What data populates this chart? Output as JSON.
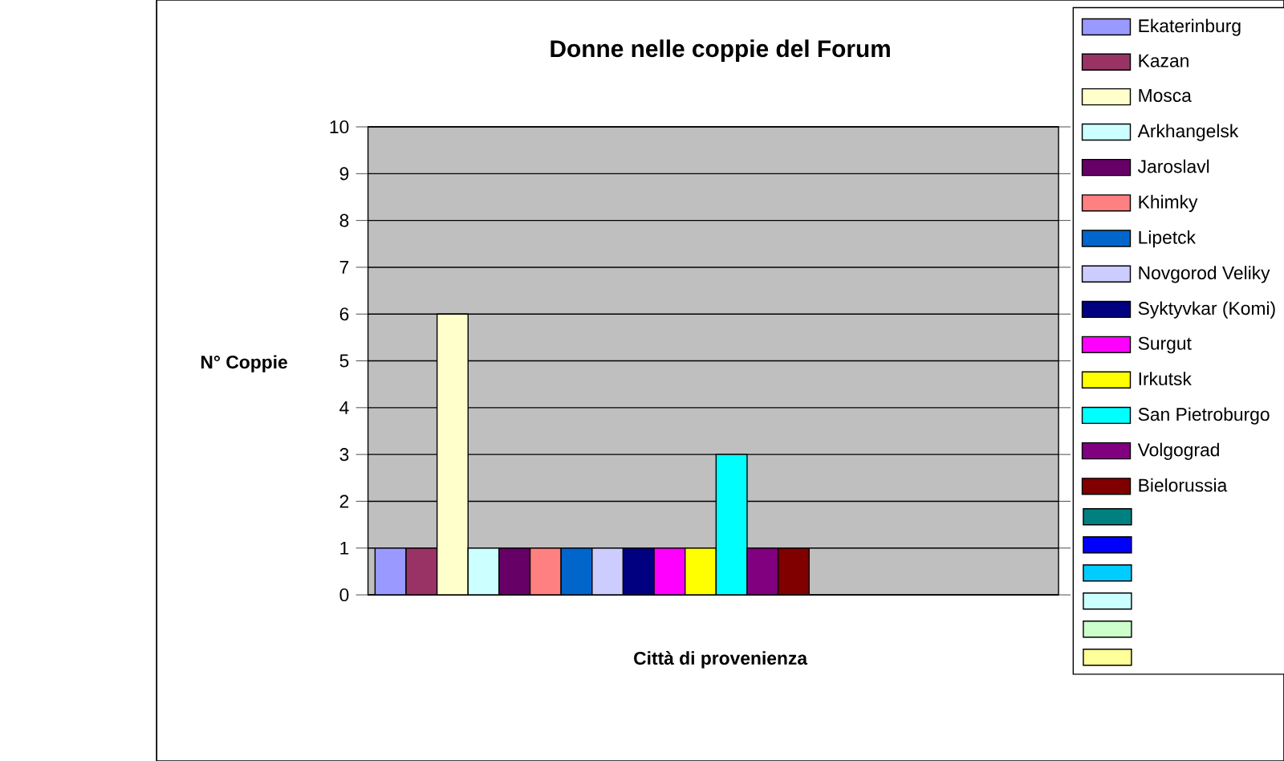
{
  "chart_data": {
    "type": "bar",
    "title": "Donne nelle coppie del Forum",
    "xlabel": "Città di provenienza",
    "ylabel": "N° Coppie",
    "categories": [
      null
    ],
    "ylim": [
      0,
      10
    ],
    "yticks": [
      0,
      1,
      2,
      3,
      4,
      5,
      6,
      7,
      8,
      9,
      10
    ],
    "grid": "y",
    "legend": "right",
    "series": [
      {
        "name": "Ekaterinburg",
        "color": "#9999ff",
        "values": [
          1
        ]
      },
      {
        "name": "Kazan",
        "color": "#993366",
        "values": [
          1
        ]
      },
      {
        "name": "Mosca",
        "color": "#ffffcc",
        "values": [
          6
        ]
      },
      {
        "name": "Arkhangelsk",
        "color": "#ccffff",
        "values": [
          1
        ]
      },
      {
        "name": "Jaroslavl",
        "color": "#660066",
        "values": [
          1
        ]
      },
      {
        "name": "Khimky",
        "color": "#ff8080",
        "values": [
          1
        ]
      },
      {
        "name": "Lipetck",
        "color": "#0066cc",
        "values": [
          1
        ]
      },
      {
        "name": "Novgorod Veliky",
        "color": "#ccccff",
        "values": [
          1
        ]
      },
      {
        "name": "Syktyvkar (Komi)",
        "color": "#000080",
        "values": [
          1
        ]
      },
      {
        "name": "Surgut",
        "color": "#ff00ff",
        "values": [
          1
        ]
      },
      {
        "name": "Irkutsk",
        "color": "#ffff00",
        "values": [
          1
        ]
      },
      {
        "name": "San Pietroburgo",
        "color": "#00ffff",
        "values": [
          3
        ]
      },
      {
        "name": "Volgograd",
        "color": "#800080",
        "values": [
          1
        ]
      },
      {
        "name": "Bielorussia",
        "color": "#800000",
        "values": [
          1
        ]
      },
      {
        "color": "#008080",
        "values": [
          null
        ]
      },
      {
        "color": "#0000ff",
        "values": [
          null
        ]
      },
      {
        "color": "#00ccff",
        "values": [
          null
        ]
      },
      {
        "color": "#ccffff",
        "values": [
          null
        ]
      },
      {
        "color": "#ccffcc",
        "values": [
          null
        ]
      },
      {
        "color": "#ffff99",
        "values": [
          null
        ]
      }
    ]
  }
}
